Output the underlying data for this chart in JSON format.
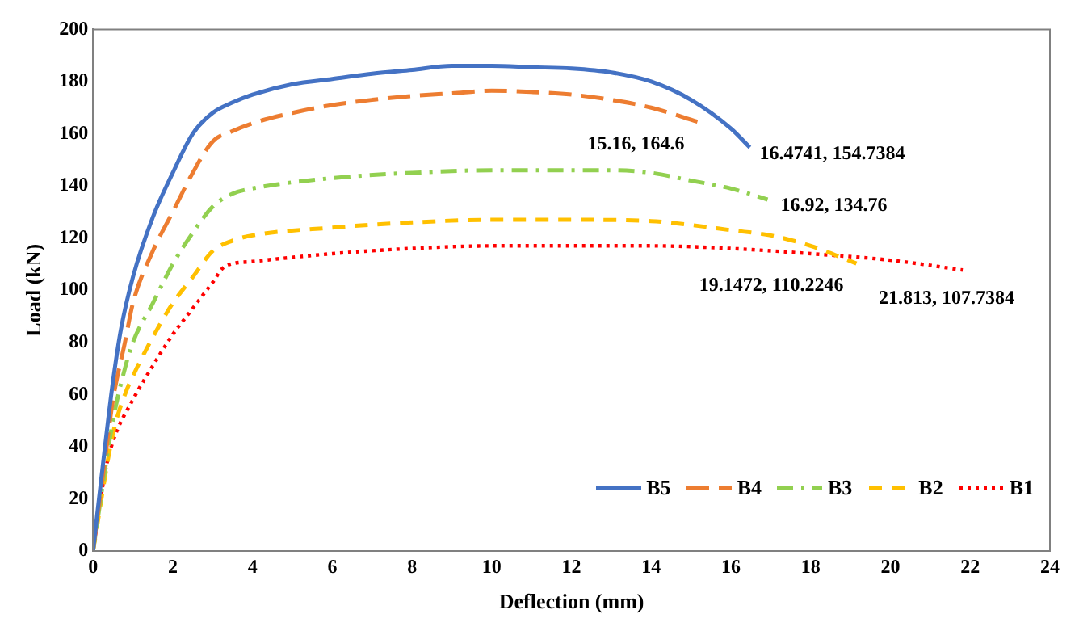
{
  "chart_data": {
    "type": "line",
    "xlabel": "Deflection (mm)",
    "ylabel": "Load (kN)",
    "xlim": [
      0,
      24
    ],
    "xticks": [
      0,
      2,
      4,
      6,
      8,
      10,
      12,
      14,
      16,
      18,
      20,
      22,
      24
    ],
    "ylim": [
      0,
      200
    ],
    "yticks": [
      0,
      20,
      40,
      60,
      80,
      100,
      120,
      140,
      160,
      180,
      200
    ],
    "grid": false,
    "legend": "bottom right",
    "marker": "none",
    "series": [
      {
        "name": "B5",
        "color": "#4472c4",
        "line_style": "solid",
        "x": [
          0,
          0.3,
          0.5,
          0.7,
          1,
          1.5,
          2,
          2.5,
          3,
          3.5,
          4,
          5,
          6,
          7,
          8,
          9,
          10,
          11,
          12,
          13,
          14,
          15,
          16,
          16.4741
        ],
        "values": [
          0,
          40,
          65,
          85,
          105,
          128,
          145,
          160,
          168,
          172,
          175,
          179,
          181,
          183,
          184.5,
          186,
          186,
          185.5,
          185,
          183.5,
          180,
          173,
          162,
          154.7384
        ]
      },
      {
        "name": "B4",
        "color": "#ed7d31",
        "line_style": "dashed",
        "x": [
          0,
          0.3,
          0.5,
          0.8,
          1,
          1.5,
          2,
          2.5,
          3,
          3.5,
          4,
          5,
          6,
          7,
          8,
          9,
          10,
          11,
          12,
          13,
          14,
          15.16
        ],
        "values": [
          0,
          35,
          58,
          80,
          95,
          115,
          130,
          145,
          157,
          161,
          164,
          168,
          171,
          173,
          174.5,
          175.5,
          176.5,
          176,
          175,
          173,
          170,
          164.6
        ]
      },
      {
        "name": "B3",
        "color": "#92d050",
        "line_style": "dashed",
        "x": [
          0,
          0.5,
          0.8,
          1,
          1.5,
          2,
          2.5,
          3,
          3.5,
          4,
          6,
          8,
          10,
          12,
          13,
          14,
          15,
          16,
          16.92
        ],
        "values": [
          0,
          50,
          70,
          80,
          95,
          110,
          122,
          132,
          137,
          139,
          143,
          145,
          146,
          146,
          146,
          145,
          142,
          139,
          134.76
        ]
      },
      {
        "name": "B2",
        "color": "#ffc000",
        "line_style": "dashed",
        "x": [
          0,
          0.5,
          0.8,
          1,
          1.5,
          2,
          2.5,
          3,
          3.5,
          4,
          6,
          8,
          10,
          12,
          14,
          15,
          16,
          17,
          18,
          19.1472
        ],
        "values": [
          0,
          45,
          60,
          67,
          82,
          95,
          105,
          115,
          119,
          121,
          124,
          126,
          127,
          127,
          126.5,
          125,
          123,
          121,
          117,
          110.2246
        ]
      },
      {
        "name": "B1",
        "color": "#ff0000",
        "line_style": "dotted",
        "x": [
          0,
          0.3,
          0.5,
          1,
          1.5,
          2,
          2.5,
          3,
          3.3,
          4,
          6,
          8,
          10,
          12,
          14,
          16,
          18,
          20,
          21.813
        ],
        "values": [
          0,
          30,
          42,
          58,
          71,
          83,
          93,
          103,
          109,
          111,
          114,
          116,
          117,
          117,
          117,
          116,
          114,
          111.5,
          107.7384
        ]
      }
    ],
    "annotations": [
      {
        "text": "15.16, 164.6",
        "x": 15.16,
        "y": 164.6
      },
      {
        "text": "16.4741, 154.7384",
        "x": 16.4741,
        "y": 154.7384
      },
      {
        "text": "16.92, 134.76",
        "x": 16.92,
        "y": 134.76
      },
      {
        "text": "19.1472, 110.2246",
        "x": 19.1472,
        "y": 110.2246
      },
      {
        "text": "21.813, 107.7384",
        "x": 21.813,
        "y": 107.7384
      }
    ]
  }
}
